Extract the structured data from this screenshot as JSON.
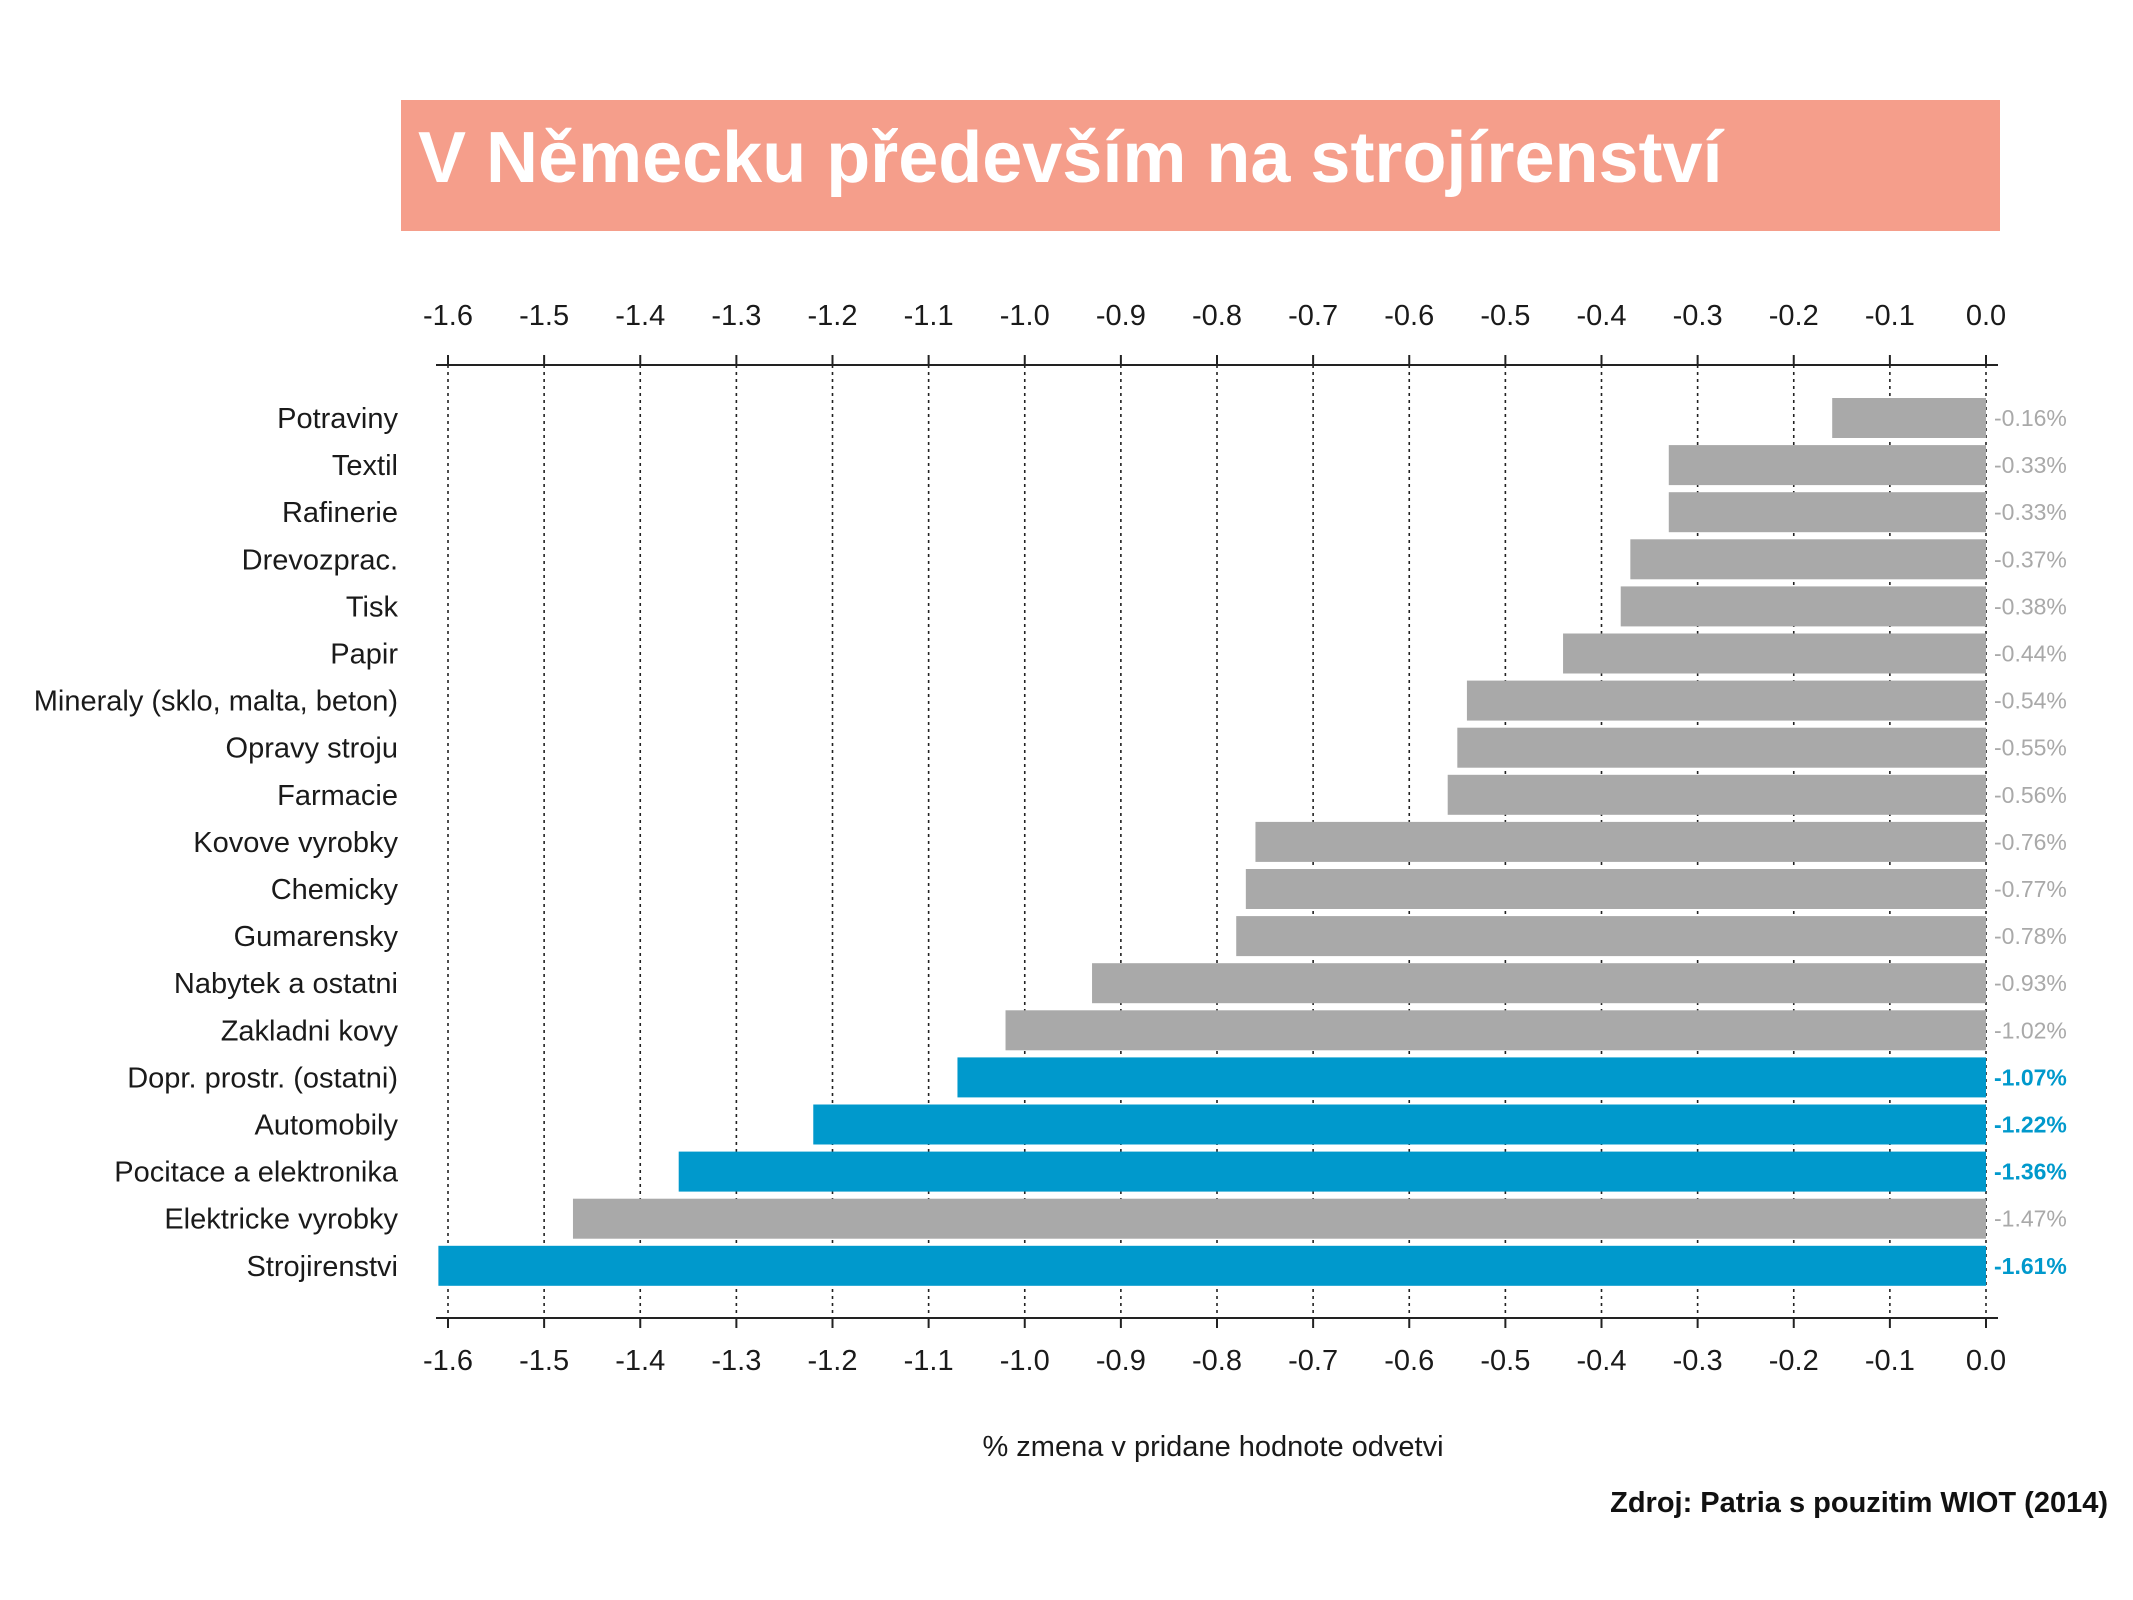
{
  "title": "V Německu především na strojírenství",
  "source": "Zdroj: Patria s pouzitim WIOT (2014)",
  "colors": {
    "banner": "#f59e8b",
    "bar_default": "#a9a9a9",
    "bar_highlight": "#0099cc",
    "label_default": "#a9a9a9",
    "label_highlight": "#0099cc"
  },
  "chart_data": {
    "type": "bar",
    "orientation": "horizontal",
    "xlabel": "% zmena v pridane hodnote odvetvi",
    "xlim": [
      -1.6,
      0.0
    ],
    "xticks": [
      "-1.6",
      "-1.5",
      "-1.4",
      "-1.3",
      "-1.2",
      "-1.1",
      "-1.0",
      "-0.9",
      "-0.8",
      "-0.7",
      "-0.6",
      "-0.5",
      "-0.4",
      "-0.3",
      "-0.2",
      "-0.1",
      "0.0"
    ],
    "grid": "vertical dotted",
    "categories": [
      "Potraviny",
      "Textil",
      "Rafinerie",
      "Drevozprac.",
      "Tisk",
      "Papir",
      "Mineraly (sklo, malta, beton)",
      "Opravy stroju",
      "Farmacie",
      "Kovove vyrobky",
      "Chemicky",
      "Gumarensky",
      "Nabytek a ostatni",
      "Zakladni kovy",
      "Dopr. prostr. (ostatni)",
      "Automobily",
      "Pocitace a elektronika",
      "Elektricke vyrobky",
      "Strojirenstvi"
    ],
    "values": [
      -0.16,
      -0.33,
      -0.33,
      -0.37,
      -0.38,
      -0.44,
      -0.54,
      -0.55,
      -0.56,
      -0.76,
      -0.77,
      -0.78,
      -0.93,
      -1.02,
      -1.07,
      -1.22,
      -1.36,
      -1.47,
      -1.61
    ],
    "value_labels": [
      "-0.16%",
      "-0.33%",
      "-0.33%",
      "-0.37%",
      "-0.38%",
      "-0.44%",
      "-0.54%",
      "-0.55%",
      "-0.56%",
      "-0.76%",
      "-0.77%",
      "-0.78%",
      "-0.93%",
      "-1.02%",
      "-1.07%",
      "-1.22%",
      "-1.36%",
      "-1.47%",
      "-1.61%"
    ],
    "highlighted": [
      "Dopr. prostr. (ostatni)",
      "Automobily",
      "Pocitace a elektronika",
      "Strojirenstvi"
    ]
  }
}
